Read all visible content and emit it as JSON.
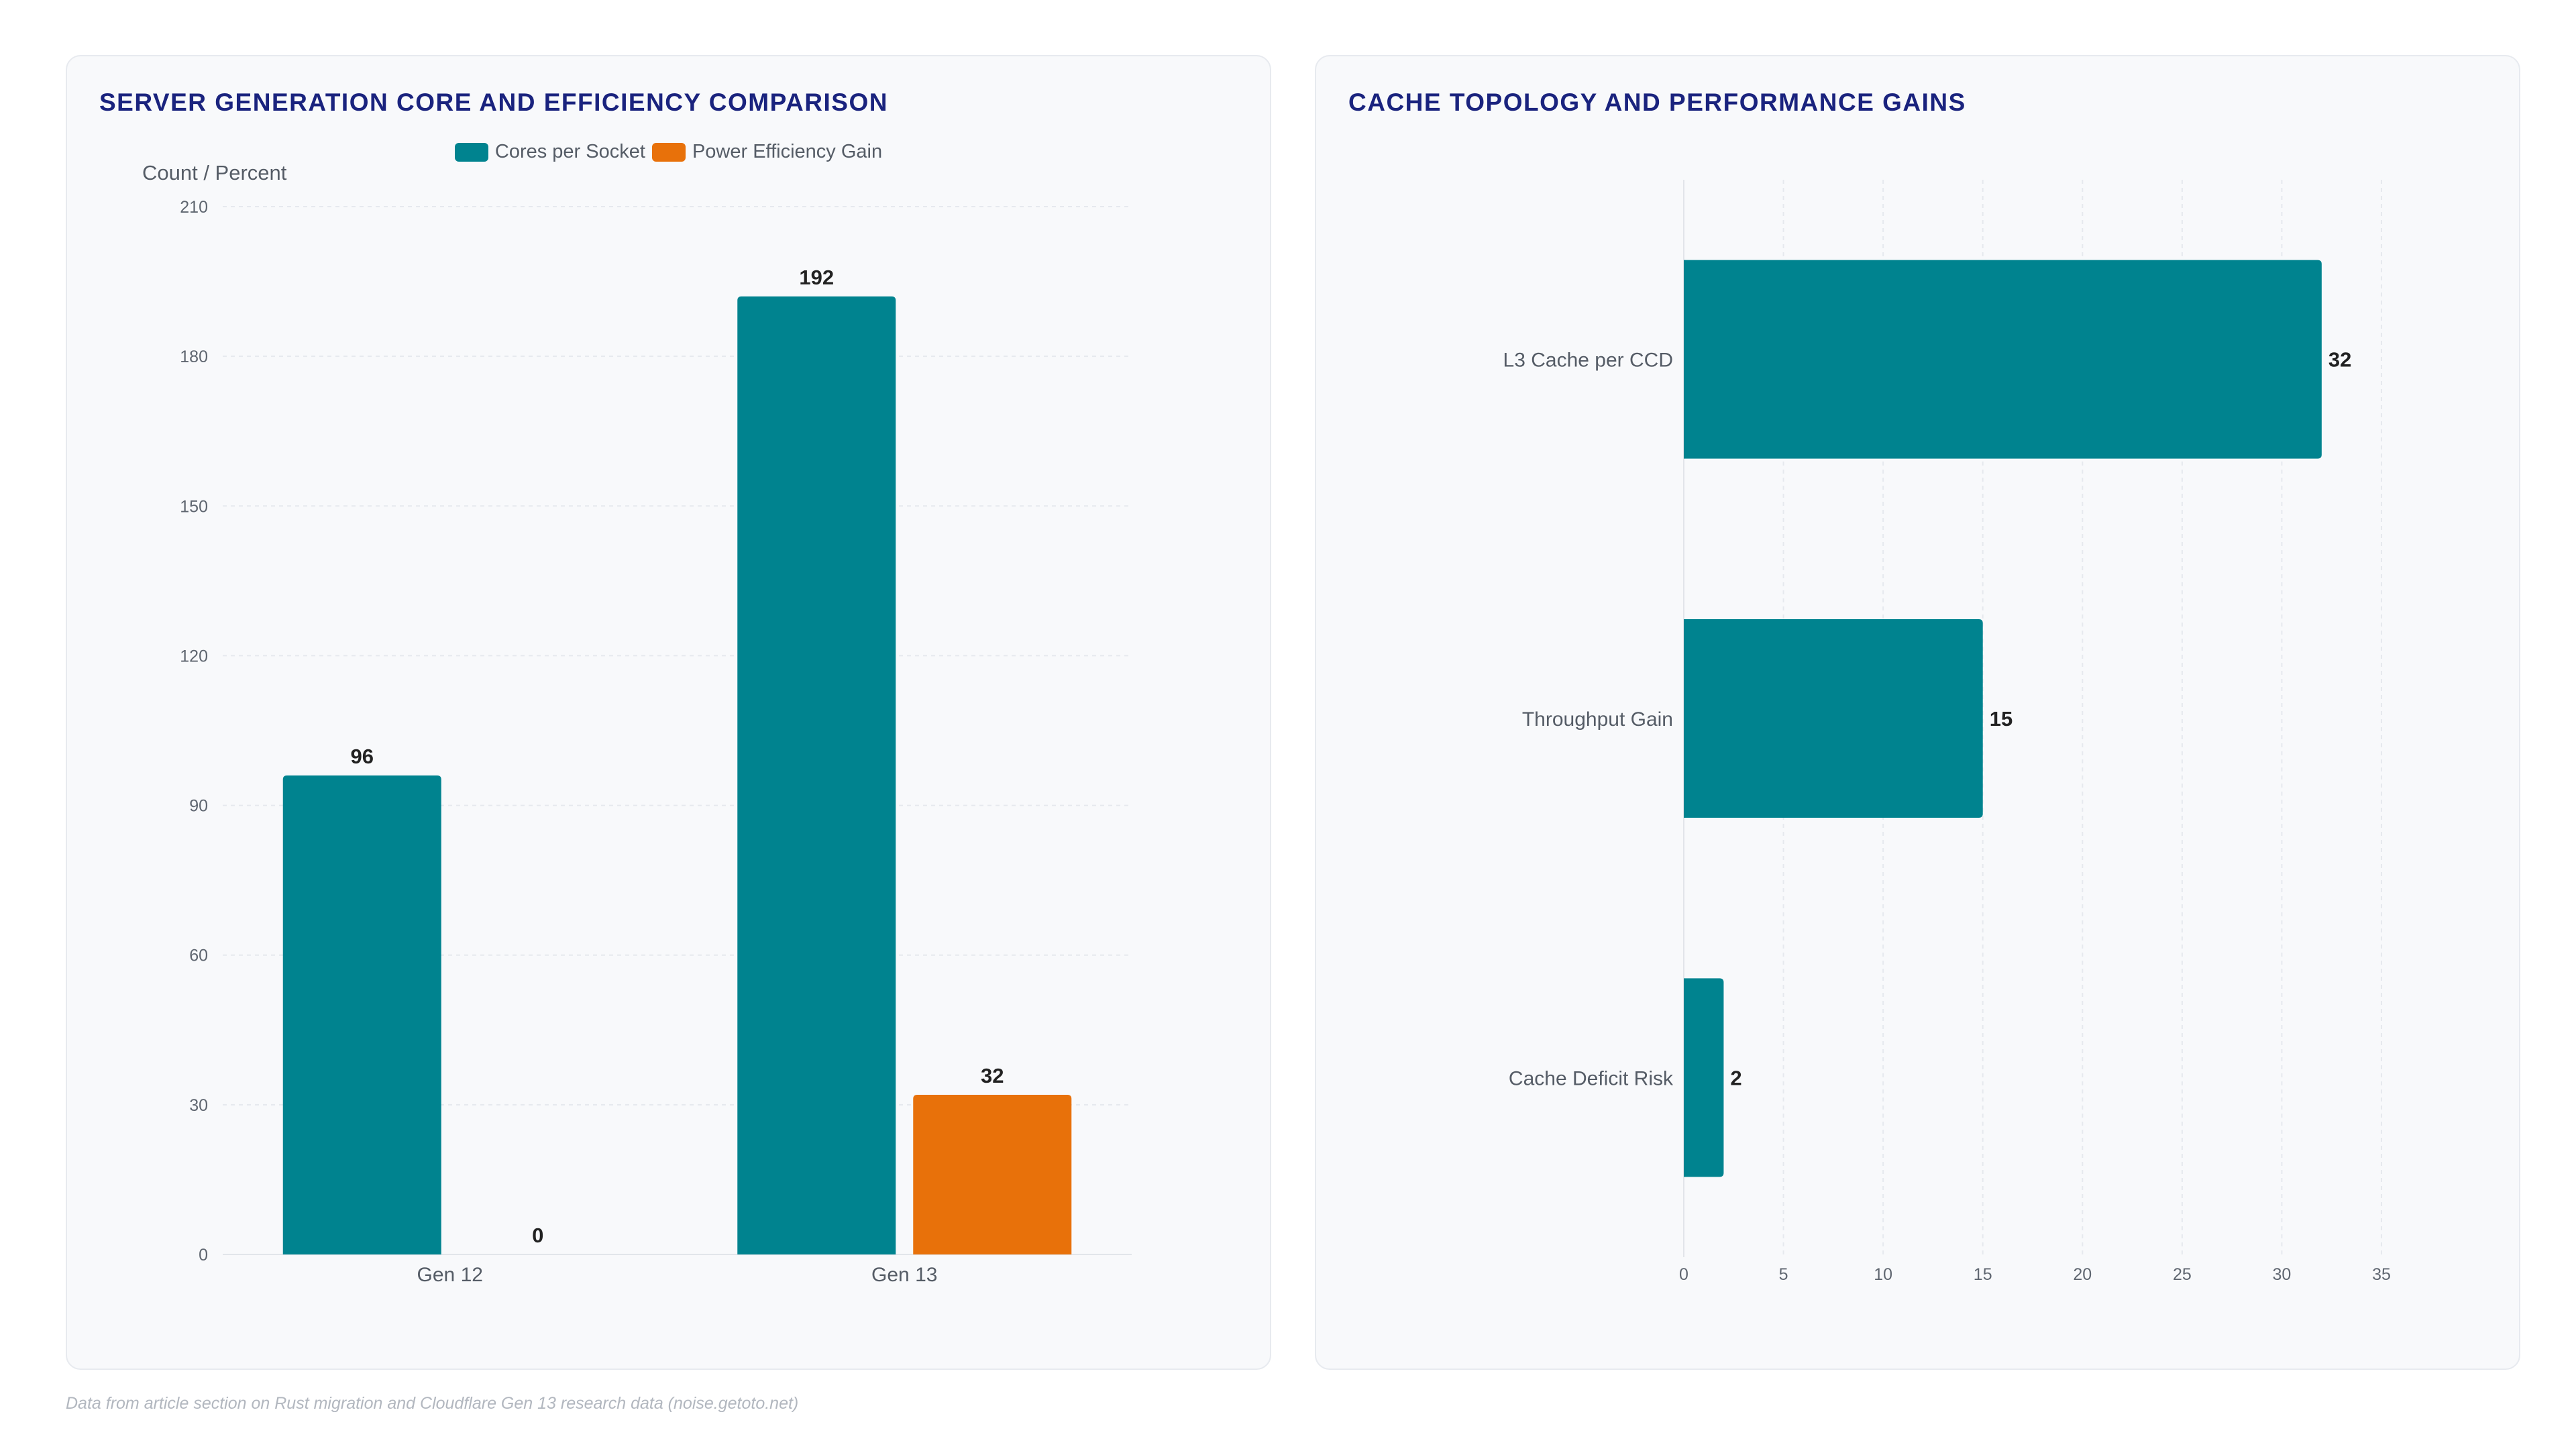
{
  "chart_data": [
    {
      "type": "bar",
      "title": "SERVER GENERATION CORE AND EFFICIENCY COMPARISON",
      "ylabel": "Count / Percent",
      "categories": [
        "Gen 12",
        "Gen 13"
      ],
      "series": [
        {
          "name": "Cores per Socket",
          "values": [
            96,
            192
          ],
          "color": "#00838f"
        },
        {
          "name": "Power Efficiency Gain",
          "values": [
            0,
            32
          ],
          "color": "#e8710a"
        }
      ],
      "ylim": [
        0,
        210
      ],
      "yticks": [
        0,
        30,
        60,
        90,
        120,
        150,
        180,
        210
      ],
      "legend": "top-center",
      "grid": true
    },
    {
      "type": "bar",
      "orientation": "horizontal",
      "title": "CACHE TOPOLOGY AND PERFORMANCE GAINS",
      "categories": [
        "L3 Cache per CCD",
        "Throughput Gain",
        "Cache Deficit Risk"
      ],
      "values": [
        32,
        15,
        2
      ],
      "color": "#00838f",
      "xlim": [
        0,
        35
      ],
      "xticks": [
        0,
        5,
        10,
        15,
        20,
        25,
        30,
        35
      ],
      "grid": true
    }
  ],
  "footnote": "Data from article section on Rust migration and Cloudflare Gen 13 research data (noise.getoto.net)"
}
